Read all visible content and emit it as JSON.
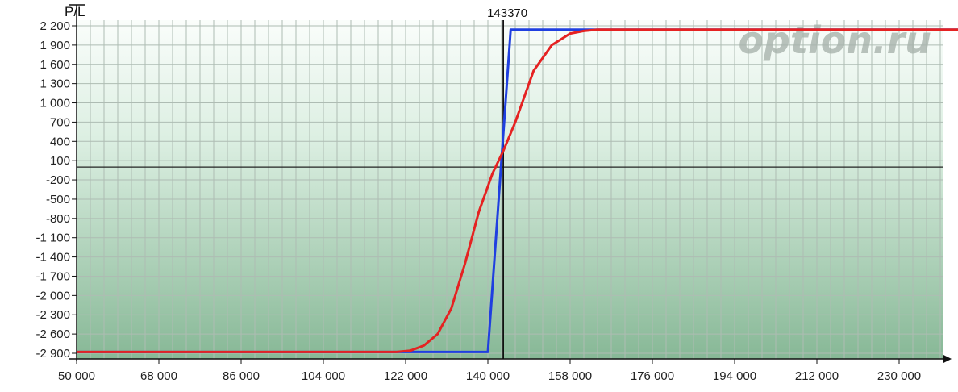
{
  "chart_data": {
    "type": "line",
    "ylabel": "P/L",
    "xlabel": "",
    "xlim": [
      50000,
      250000
    ],
    "ylim": [
      -2900,
      2200
    ],
    "x_ticks": [
      50000,
      68000,
      86000,
      104000,
      122000,
      140000,
      158000,
      176000,
      194000,
      212000,
      230000
    ],
    "x_tick_labels": [
      "50 000",
      "68 000",
      "86 000",
      "104 000",
      "122 000",
      "140 000",
      "158 000",
      "176 000",
      "194 000",
      "212 000",
      "230 000"
    ],
    "y_ticks": [
      2200,
      1900,
      1600,
      1300,
      1000,
      700,
      400,
      100,
      -200,
      -500,
      -800,
      -1100,
      -1400,
      -1700,
      -2000,
      -2300,
      -2600,
      -2900
    ],
    "y_tick_labels": [
      "2 200",
      "1 900",
      "1 600",
      "1 300",
      "1 000",
      "700",
      "400",
      "100",
      "-200",
      "-500",
      "-800",
      "-1 100",
      "-1 400",
      "-1 700",
      "-2 000",
      "-2 300",
      "-2 600",
      "-2 900"
    ],
    "grid": true,
    "zero_line": 0,
    "current_price": 143370,
    "current_price_label": "143370",
    "watermark": "option.ru",
    "series": [
      {
        "color": "#1f3fe0",
        "x": [
          50000,
          122000,
          140000,
          145000,
          250000
        ],
        "y": [
          -2880,
          -2880,
          -2880,
          2140,
          2140
        ]
      },
      {
        "color": "#e52222",
        "x": [
          50000,
          120000,
          123000,
          126000,
          129000,
          132000,
          135000,
          138000,
          141000,
          143370,
          146000,
          150000,
          154000,
          158000,
          161000,
          164000,
          168000,
          250000
        ],
        "y": [
          -2880,
          -2880,
          -2860,
          -2780,
          -2600,
          -2200,
          -1500,
          -700,
          -100,
          250,
          700,
          1500,
          1900,
          2080,
          2120,
          2140,
          2140,
          2140
        ]
      }
    ]
  }
}
